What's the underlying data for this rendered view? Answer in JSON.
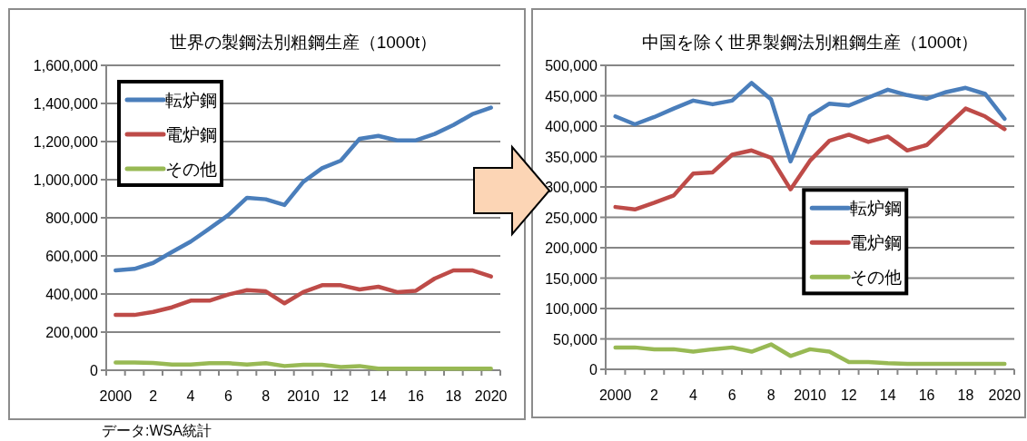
{
  "chart_data": [
    {
      "type": "line",
      "title": "世界の製鋼法別粗鋼生産（1000t）",
      "annotations": [
        "データ:WSA統計"
      ],
      "legend": "top left",
      "grid": "y",
      "line_style": "solid",
      "marker": "none",
      "categories": [
        "2000",
        null,
        "2",
        null,
        "4",
        null,
        "6",
        null,
        "8",
        null,
        "2010",
        null,
        "12",
        null,
        "14",
        null,
        "16",
        null,
        "18",
        null,
        "2020"
      ],
      "ylim": [
        0,
        1600000
      ],
      "yticks": [
        0,
        {
          "value": 200000,
          "label": "200,000"
        },
        {
          "value": 400000,
          "label": "400,000"
        },
        {
          "value": 600000,
          "label": "600,000"
        },
        {
          "value": 800000,
          "label": "800,000"
        },
        {
          "value": 1000000,
          "label": "1,000,000"
        },
        {
          "value": 1200000,
          "label": "1,200,000"
        },
        {
          "value": 1400000,
          "label": "1,400,000"
        },
        {
          "value": 1600000,
          "label": "1,600,000"
        }
      ],
      "series": [
        {
          "name": "転炉鋼",
          "color": "#4a7ebb",
          "values": [
            524000,
            532000,
            563000,
            620000,
            675000,
            743000,
            814000,
            905000,
            897000,
            867000,
            989000,
            1060000,
            1100000,
            1214000,
            1230000,
            1206000,
            1206000,
            1240000,
            1287000,
            1343000,
            1378000
          ]
        },
        {
          "name": "電炉鋼",
          "color": "#be4b48",
          "values": [
            290000,
            290000,
            306000,
            330000,
            365000,
            365000,
            397000,
            420000,
            414000,
            351000,
            410000,
            446000,
            446000,
            424000,
            438000,
            410000,
            417000,
            481000,
            524000,
            524000,
            492000
          ]
        },
        {
          "name": "その他",
          "color": "#98b954",
          "values": [
            40000,
            40000,
            38000,
            30000,
            30000,
            37000,
            37000,
            30000,
            37000,
            22000,
            29000,
            29000,
            17000,
            22000,
            8000,
            8000,
            8000,
            8000,
            8000,
            8000,
            8000
          ]
        }
      ]
    },
    {
      "type": "line",
      "title": "中国を除く世界製鋼法別粗鋼生産（1000t）",
      "legend": "center",
      "grid": "y",
      "line_style": "solid",
      "marker": "none",
      "categories": [
        "2000",
        null,
        "2",
        null,
        "4",
        null,
        "6",
        null,
        "8",
        null,
        "2010",
        null,
        "12",
        null,
        "14",
        null,
        "16",
        null,
        "18",
        null,
        "2020"
      ],
      "ylim": [
        0,
        500000
      ],
      "yticks": [
        0,
        {
          "value": 50000,
          "label": "50,000"
        },
        {
          "value": 100000,
          "label": "100,000"
        },
        {
          "value": 150000,
          "label": "150,000"
        },
        {
          "value": 200000,
          "label": "200,000"
        },
        {
          "value": 250000,
          "label": "250,000"
        },
        {
          "value": 300000,
          "label": "300,000"
        },
        {
          "value": 350000,
          "label": "350,000"
        },
        {
          "value": 400000,
          "label": "400,000"
        },
        {
          "value": 450000,
          "label": "450,000"
        },
        {
          "value": 500000,
          "label": "500,000"
        }
      ],
      "series": [
        {
          "name": "転炉鋼",
          "color": "#4a7ebb",
          "values": [
            416000,
            403000,
            415000,
            429000,
            442000,
            436000,
            442000,
            471000,
            444000,
            342000,
            417000,
            437000,
            434000,
            447000,
            460000,
            451000,
            445000,
            456000,
            463000,
            453000,
            412000
          ]
        },
        {
          "name": "電炉鋼",
          "color": "#be4b48",
          "values": [
            267000,
            263000,
            274000,
            286000,
            322000,
            324000,
            353000,
            360000,
            348000,
            296000,
            343000,
            376000,
            386000,
            374000,
            383000,
            360000,
            369000,
            399000,
            429000,
            416000,
            395000
          ]
        },
        {
          "name": "その他",
          "color": "#98b954",
          "values": [
            36000,
            36000,
            33000,
            33000,
            29000,
            33000,
            36000,
            29000,
            41000,
            22000,
            33000,
            29000,
            12000,
            12000,
            10000,
            9000,
            9000,
            9000,
            9000,
            9000,
            9000
          ]
        }
      ]
    }
  ]
}
